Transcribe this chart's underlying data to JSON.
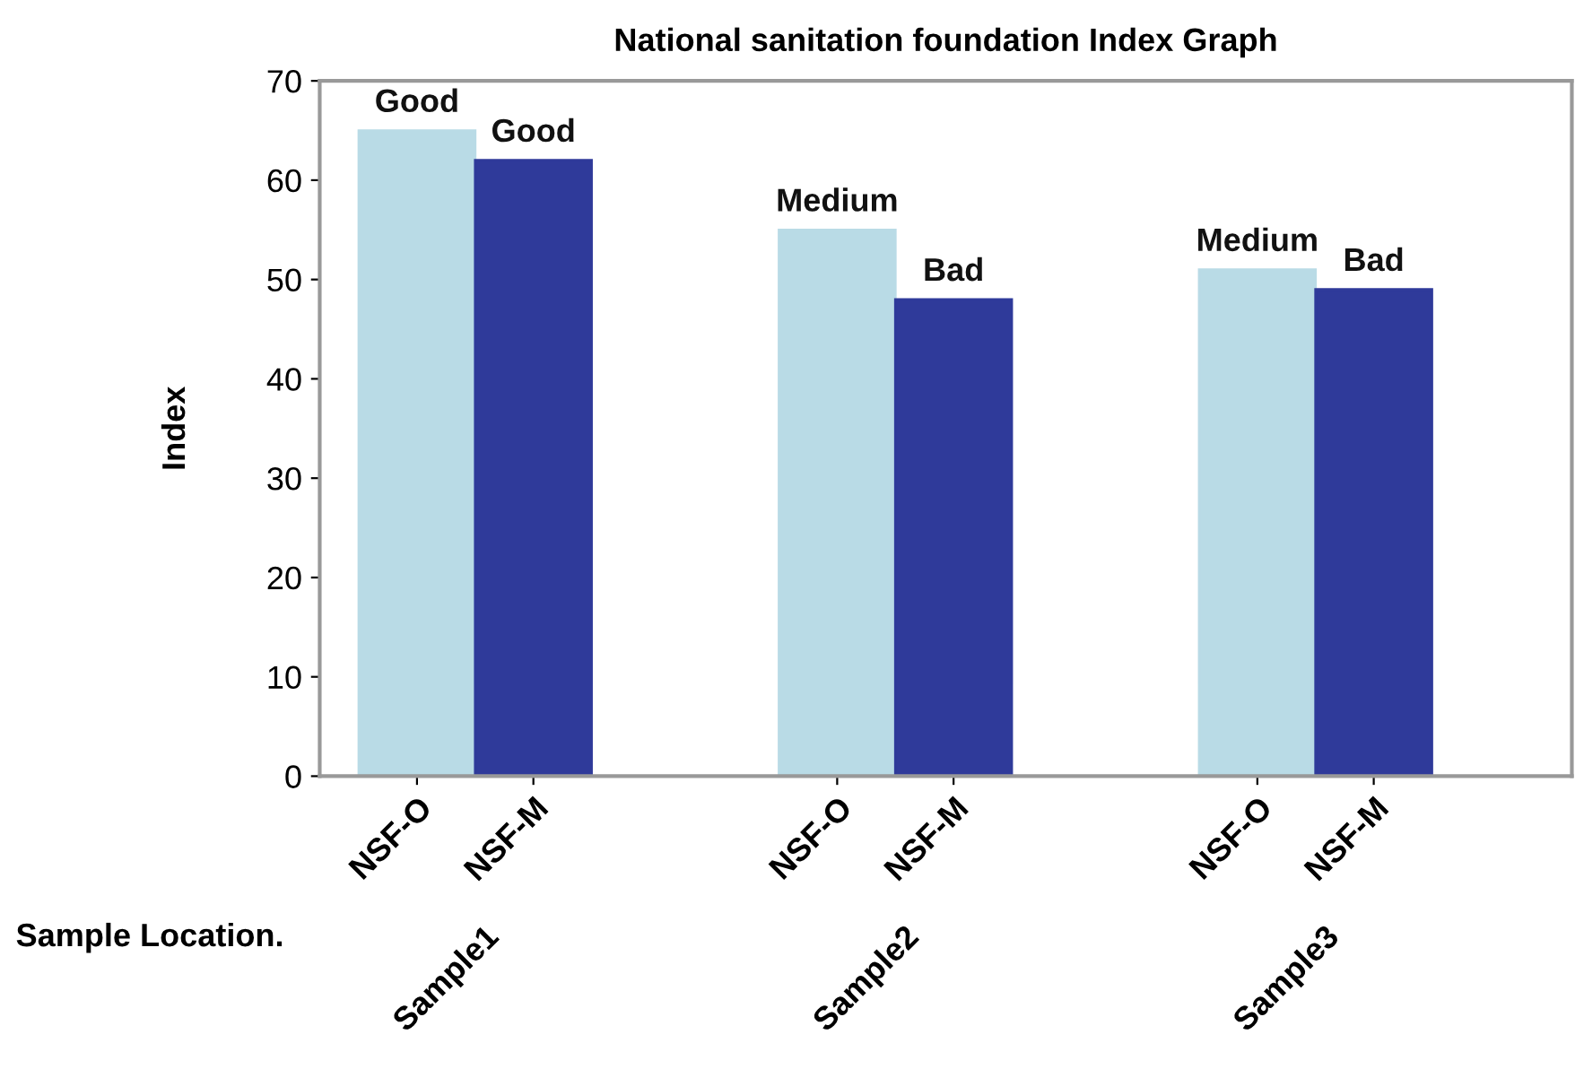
{
  "chart_data": {
    "type": "bar",
    "title": "National sanitation foundation Index Graph",
    "xlabel": "Sample Location.",
    "ylabel": "Index",
    "categories": [
      "Sample1",
      "Sample2",
      "Sample3"
    ],
    "series": [
      {
        "name": "NSF-O",
        "color": "#b9dbe6",
        "values": [
          65,
          55,
          51
        ],
        "value_labels": [
          "Good",
          "Medium",
          "Medium"
        ]
      },
      {
        "name": "NSF-M",
        "color": "#2f3a9a",
        "values": [
          62,
          48,
          49
        ],
        "value_labels": [
          "Good",
          "Bad",
          "Bad"
        ]
      }
    ],
    "ylim": [
      0,
      70
    ],
    "yticks": [
      0,
      10,
      20,
      30,
      40,
      50,
      60,
      70
    ],
    "grid": false,
    "legend": false
  }
}
